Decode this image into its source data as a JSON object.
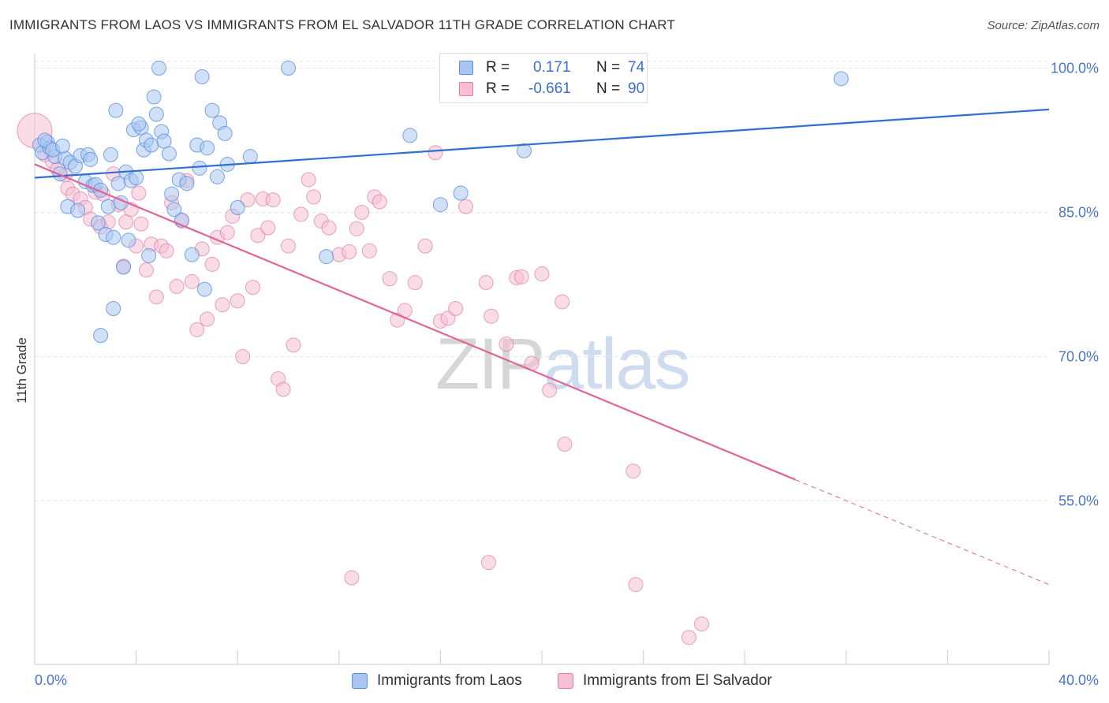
{
  "title": "IMMIGRANTS FROM LAOS VS IMMIGRANTS FROM EL SALVADOR 11TH GRADE CORRELATION CHART",
  "source": "Source: ZipAtlas.com",
  "watermark": {
    "part1": "ZIP",
    "part2": "atlas"
  },
  "colors": {
    "laos": "#5b8ee0",
    "laos_fill": "#aac6f0",
    "elsalvador": "#e07ba3",
    "elsalvador_fill": "#f6bfd3",
    "axis_text": "#4a74c9",
    "grid": "#e6e6e6"
  },
  "stats": {
    "laos": {
      "r_label": "R =",
      "r_value": "0.171",
      "n_label": "N =",
      "n_value": "74"
    },
    "elsalvador": {
      "r_label": "R =",
      "r_value": "-0.661",
      "n_label": "N =",
      "n_value": "90"
    }
  },
  "legend": {
    "laos": "Immigrants from Laos",
    "elsalvador": "Immigrants from El Salvador"
  },
  "chart_data": {
    "type": "scatter",
    "title": "IMMIGRANTS FROM LAOS VS IMMIGRANTS FROM EL SALVADOR 11TH GRADE CORRELATION CHART",
    "xlabel": "",
    "ylabel": "11th Grade",
    "xlim": [
      0,
      40
    ],
    "ylim": [
      38,
      102
    ],
    "x_tick_labels": [
      "0.0%",
      "40.0%"
    ],
    "y_ticks": [
      100,
      85,
      70,
      55
    ],
    "y_tick_labels": [
      "100.0%",
      "85.0%",
      "70.0%",
      "55.0%"
    ],
    "grid": true,
    "legend_position": "bottom-center",
    "series": [
      {
        "name": "Immigrants from Laos",
        "trend": {
          "x": [
            0,
            40
          ],
          "y": [
            88.6,
            95.7
          ]
        },
        "points": [
          [
            0.2,
            92.0
          ],
          [
            0.3,
            91.2
          ],
          [
            0.5,
            92.3
          ],
          [
            0.6,
            91.7
          ],
          [
            0.8,
            90.8
          ],
          [
            1.0,
            89.0
          ],
          [
            1.2,
            90.6
          ],
          [
            1.4,
            90.2
          ],
          [
            1.3,
            85.6
          ],
          [
            1.6,
            89.8
          ],
          [
            1.7,
            85.2
          ],
          [
            1.8,
            90.9
          ],
          [
            2.0,
            88.2
          ],
          [
            2.1,
            91.0
          ],
          [
            2.2,
            90.5
          ],
          [
            2.3,
            87.8
          ],
          [
            2.4,
            87.9
          ],
          [
            2.5,
            83.9
          ],
          [
            2.6,
            87.3
          ],
          [
            2.8,
            82.7
          ],
          [
            2.9,
            85.6
          ],
          [
            3.0,
            91.0
          ],
          [
            3.1,
            82.4
          ],
          [
            3.2,
            95.6
          ],
          [
            3.3,
            88.0
          ],
          [
            3.4,
            86.0
          ],
          [
            3.5,
            79.3
          ],
          [
            3.6,
            89.2
          ],
          [
            3.7,
            82.1
          ],
          [
            3.8,
            88.3
          ],
          [
            3.9,
            93.6
          ],
          [
            4.0,
            88.6
          ],
          [
            4.2,
            93.8
          ],
          [
            4.3,
            91.5
          ],
          [
            4.4,
            92.5
          ],
          [
            4.5,
            80.5
          ],
          [
            4.6,
            92.0
          ],
          [
            4.7,
            97.0
          ],
          [
            4.8,
            95.2
          ],
          [
            4.9,
            100.0
          ],
          [
            5.0,
            93.4
          ],
          [
            5.1,
            92.4
          ],
          [
            5.3,
            91.1
          ],
          [
            5.5,
            85.3
          ],
          [
            5.7,
            88.4
          ],
          [
            5.8,
            84.2
          ],
          [
            6.0,
            88.0
          ],
          [
            6.2,
            80.6
          ],
          [
            6.4,
            92.0
          ],
          [
            6.5,
            89.6
          ],
          [
            6.6,
            99.1
          ],
          [
            6.8,
            91.7
          ],
          [
            7.0,
            95.6
          ],
          [
            7.3,
            94.3
          ],
          [
            7.5,
            93.2
          ],
          [
            7.6,
            90.0
          ],
          [
            8.0,
            85.5
          ],
          [
            8.5,
            90.8
          ],
          [
            10.0,
            100.0
          ],
          [
            11.5,
            80.4
          ],
          [
            14.8,
            93.0
          ],
          [
            16.0,
            85.8
          ],
          [
            16.8,
            87.0
          ],
          [
            19.3,
            91.4
          ],
          [
            31.8,
            98.9
          ],
          [
            0.4,
            92.5
          ],
          [
            0.7,
            91.5
          ],
          [
            1.1,
            91.9
          ],
          [
            3.1,
            75.0
          ],
          [
            2.6,
            72.2
          ],
          [
            6.7,
            77.0
          ],
          [
            5.4,
            86.9
          ],
          [
            4.1,
            94.2
          ],
          [
            7.2,
            88.7
          ]
        ]
      },
      {
        "name": "Immigrants from El Salvador",
        "trend": {
          "x": [
            0,
            30
          ],
          "y": [
            90.0,
            57.2
          ]
        },
        "trend_dashed": {
          "x": [
            30,
            40
          ],
          "y": [
            57.2,
            46.3
          ]
        },
        "points": [
          [
            0.0,
            93.5
          ],
          [
            0.4,
            91.0
          ],
          [
            0.7,
            90.3
          ],
          [
            0.9,
            89.5
          ],
          [
            1.2,
            88.9
          ],
          [
            1.3,
            87.5
          ],
          [
            1.5,
            86.9
          ],
          [
            1.8,
            86.4
          ],
          [
            2.0,
            85.5
          ],
          [
            2.2,
            84.3
          ],
          [
            2.4,
            87.1
          ],
          [
            2.6,
            83.5
          ],
          [
            2.7,
            86.9
          ],
          [
            2.9,
            84.0
          ],
          [
            3.1,
            89.0
          ],
          [
            3.3,
            85.8
          ],
          [
            3.5,
            79.4
          ],
          [
            3.6,
            84.0
          ],
          [
            3.8,
            85.3
          ],
          [
            4.0,
            81.5
          ],
          [
            4.1,
            87.0
          ],
          [
            4.2,
            83.8
          ],
          [
            4.4,
            79.0
          ],
          [
            4.6,
            81.7
          ],
          [
            4.8,
            76.2
          ],
          [
            5.0,
            81.5
          ],
          [
            5.2,
            81.0
          ],
          [
            5.4,
            86.0
          ],
          [
            5.6,
            77.3
          ],
          [
            5.8,
            84.1
          ],
          [
            6.0,
            88.3
          ],
          [
            6.2,
            77.8
          ],
          [
            6.4,
            72.8
          ],
          [
            6.6,
            81.2
          ],
          [
            6.8,
            73.9
          ],
          [
            7.0,
            79.6
          ],
          [
            7.2,
            82.4
          ],
          [
            7.4,
            75.4
          ],
          [
            7.6,
            82.9
          ],
          [
            7.8,
            84.6
          ],
          [
            8.0,
            75.8
          ],
          [
            8.2,
            70.0
          ],
          [
            8.4,
            86.3
          ],
          [
            8.6,
            77.2
          ],
          [
            8.8,
            82.6
          ],
          [
            9.0,
            86.4
          ],
          [
            9.2,
            83.4
          ],
          [
            9.4,
            86.3
          ],
          [
            9.6,
            67.7
          ],
          [
            9.8,
            66.6
          ],
          [
            10.0,
            81.5
          ],
          [
            10.2,
            71.2
          ],
          [
            10.5,
            84.8
          ],
          [
            10.8,
            88.4
          ],
          [
            11.0,
            86.6
          ],
          [
            11.3,
            84.1
          ],
          [
            11.6,
            83.4
          ],
          [
            12.0,
            80.6
          ],
          [
            12.4,
            80.9
          ],
          [
            12.7,
            83.3
          ],
          [
            12.9,
            85.0
          ],
          [
            13.2,
            81.0
          ],
          [
            13.4,
            86.6
          ],
          [
            13.6,
            86.1
          ],
          [
            14.0,
            78.1
          ],
          [
            14.3,
            73.8
          ],
          [
            14.6,
            74.8
          ],
          [
            15.0,
            77.7
          ],
          [
            15.4,
            81.5
          ],
          [
            15.8,
            91.2
          ],
          [
            16.0,
            73.7
          ],
          [
            16.3,
            74.0
          ],
          [
            16.6,
            75.0
          ],
          [
            17.0,
            85.6
          ],
          [
            17.8,
            77.7
          ],
          [
            18.0,
            74.2
          ],
          [
            18.6,
            71.3
          ],
          [
            19.0,
            78.2
          ],
          [
            19.2,
            78.3
          ],
          [
            19.6,
            69.3
          ],
          [
            20.0,
            78.6
          ],
          [
            20.3,
            66.5
          ],
          [
            20.8,
            75.7
          ],
          [
            20.9,
            60.9
          ],
          [
            23.6,
            58.1
          ],
          [
            12.5,
            47.0
          ],
          [
            17.9,
            48.6
          ],
          [
            23.7,
            46.3
          ],
          [
            25.8,
            40.8
          ],
          [
            26.3,
            42.2
          ]
        ]
      }
    ]
  }
}
